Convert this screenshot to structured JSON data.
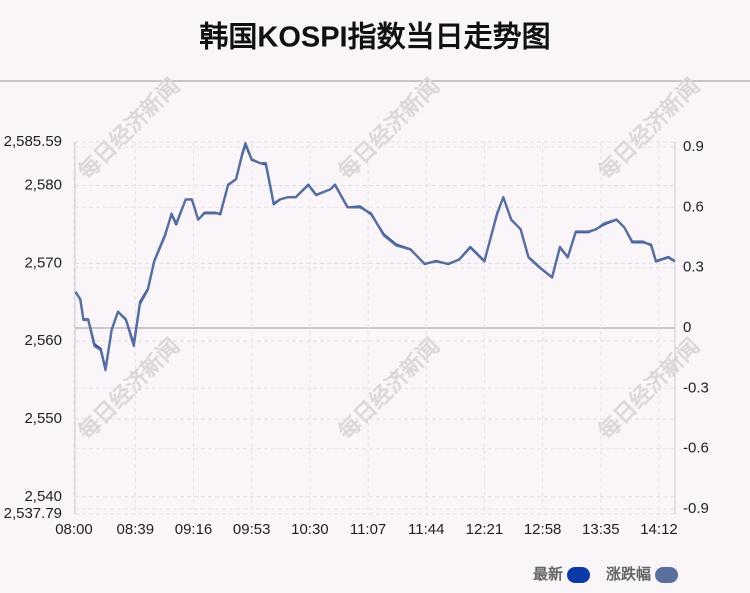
{
  "chart_data": {
    "type": "line",
    "title": "韩国KOSPI指数当日走势图",
    "watermark": "每日经济新闻",
    "x": [
      "08:01",
      "08:04",
      "08:06",
      "08:09",
      "08:13",
      "08:17",
      "08:20",
      "08:24",
      "08:28",
      "08:33",
      "08:38",
      "08:42",
      "08:47",
      "08:51",
      "08:58",
      "09:02",
      "09:05",
      "09:11",
      "09:15",
      "09:19",
      "09:23",
      "09:30",
      "09:33",
      "09:38",
      "09:43",
      "09:47",
      "09:49",
      "09:53",
      "09:58",
      "10:02",
      "10:07",
      "10:11",
      "10:16",
      "10:21",
      "10:29",
      "10:34",
      "10:43",
      "10:46",
      "10:54",
      "11:02",
      "11:09",
      "11:17",
      "11:25",
      "11:34",
      "11:43",
      "11:50",
      "11:58",
      "12:05",
      "12:12",
      "12:21",
      "12:29",
      "12:33",
      "12:38",
      "12:44",
      "12:49",
      "12:56",
      "13:04",
      "13:09",
      "13:14",
      "13:19",
      "13:27",
      "13:32",
      "13:37",
      "13:45",
      "13:50",
      "13:55",
      "14:02",
      "14:07",
      "14:10",
      "14:18",
      "14:22"
    ],
    "series": [
      {
        "name": "最新",
        "color": "#0c3aa8",
        "values": [
          2566.3,
          2565.4,
          2562.8,
          2562.8,
          2559.6,
          2559.0,
          2556.4,
          2561.5,
          2563.8,
          2562.8,
          2559.6,
          2565.0,
          2566.7,
          2570.3,
          2573.7,
          2576.3,
          2575.0,
          2578.2,
          2578.2,
          2575.6,
          2576.5,
          2576.5,
          2576.3,
          2580.1,
          2580.8,
          2584.0,
          2585.3,
          2583.3,
          2582.9,
          2582.7,
          2577.6,
          2578.2,
          2578.5,
          2578.5,
          2580.1,
          2578.8,
          2579.5,
          2580.1,
          2577.2,
          2577.3,
          2576.3,
          2573.7,
          2572.4,
          2571.8,
          2569.9,
          2570.3,
          2569.9,
          2570.5,
          2572.1,
          2570.3,
          2576.3,
          2578.5,
          2575.6,
          2574.4,
          2570.8,
          2569.5,
          2568.2,
          2572.1,
          2570.8,
          2574.0,
          2574.0,
          2574.4,
          2575.0,
          2575.6,
          2574.6,
          2572.7,
          2572.7,
          2572.4,
          2570.3,
          2570.8,
          2570.3
        ]
      },
      {
        "name": "涨跌幅",
        "color": "#5a6f9c",
        "axis": "y2",
        "values": [
          0.18,
          0.14,
          0.04,
          0.04,
          -0.09,
          -0.11,
          -0.21,
          -0.01,
          0.08,
          0.04,
          -0.09,
          0.12,
          0.19,
          0.33,
          0.46,
          0.57,
          0.52,
          0.64,
          0.64,
          0.54,
          0.57,
          0.57,
          0.57,
          0.71,
          0.74,
          0.87,
          0.92,
          0.84,
          0.82,
          0.82,
          0.62,
          0.64,
          0.65,
          0.65,
          0.71,
          0.66,
          0.69,
          0.71,
          0.6,
          0.6,
          0.57,
          0.46,
          0.41,
          0.39,
          0.32,
          0.33,
          0.32,
          0.34,
          0.4,
          0.33,
          0.57,
          0.65,
          0.54,
          0.49,
          0.35,
          0.3,
          0.25,
          0.4,
          0.35,
          0.48,
          0.48,
          0.49,
          0.52,
          0.54,
          0.5,
          0.43,
          0.43,
          0.41,
          0.33,
          0.35,
          0.33
        ]
      }
    ],
    "xticks": [
      "08:00",
      "08:39",
      "09:16",
      "09:53",
      "10:30",
      "11:07",
      "11:44",
      "12:21",
      "12:58",
      "13:35",
      "14:12"
    ],
    "ylim": [
      2537.79,
      2585.59
    ],
    "yticks": [
      {
        "value": 2537.79,
        "label": "2,537.79"
      },
      {
        "value": 2540,
        "label": "2,540"
      },
      {
        "value": 2550,
        "label": "2,550"
      },
      {
        "value": 2560,
        "label": "2,560"
      },
      {
        "value": 2570,
        "label": "2,570"
      },
      {
        "value": 2580,
        "label": "2,580"
      },
      {
        "value": 2585.59,
        "label": "2,585.59"
      }
    ],
    "y2lim": [
      -0.925,
      0.925
    ],
    "y2ticks": [
      -0.9,
      -0.6,
      -0.3,
      0,
      0.3,
      0.6,
      0.9
    ],
    "grid": true,
    "legend": "bottom-right"
  }
}
